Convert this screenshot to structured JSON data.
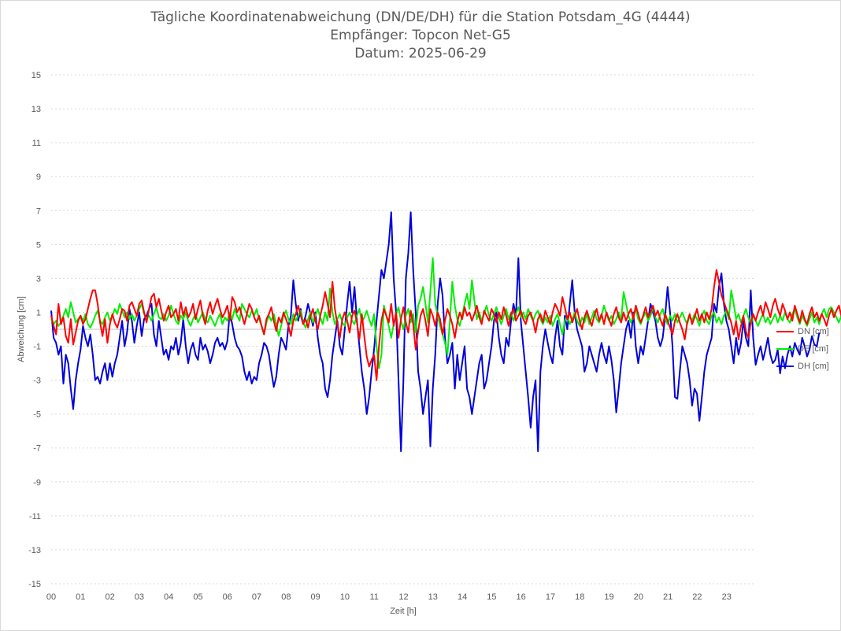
{
  "chart_data": {
    "type": "line",
    "title": "Tägliche Koordinatenabweichung (DN/DE/DH) für die Station Potsdam_4G (4444)",
    "subtitle": "Empfänger: Topcon Net-G5",
    "subtitle2": "Datum: 2025-06-29",
    "xlabel": "Zeit [h]",
    "ylabel": "Abweichung [cm]",
    "xlim": [
      0,
      24
    ],
    "ylim": [
      -15,
      15
    ],
    "x_ticks": [
      "00",
      "01",
      "02",
      "03",
      "04",
      "05",
      "06",
      "07",
      "08",
      "09",
      "10",
      "11",
      "12",
      "13",
      "14",
      "15",
      "16",
      "17",
      "18",
      "19",
      "20",
      "21",
      "22",
      "23"
    ],
    "y_ticks": [
      15,
      13,
      11,
      9,
      7,
      5,
      3,
      1,
      -1,
      -3,
      -5,
      -7,
      -9,
      -11,
      -13,
      -15
    ],
    "grid": "horizontal-dotted",
    "legend_position": "right",
    "x_step_hours": 0.0833,
    "series": [
      {
        "name": "DN [cm]",
        "color": "#ff0000",
        "values": [
          0.8,
          0.2,
          -0.3,
          1.5,
          0.3,
          0.7,
          -0.4,
          -0.8,
          0.6,
          -0.9,
          -0.2,
          0.5,
          0.8,
          0.3,
          0.6,
          1.2,
          1.8,
          2.3,
          2.3,
          1.5,
          0.4,
          -0.4,
          0.6,
          -0.8,
          0.3,
          0.9,
          0.4,
          0.1,
          0.6,
          1.2,
          1.1,
          0.5,
          1.4,
          1.6,
          1.2,
          0.8,
          1.5,
          1.7,
          1.0,
          0.4,
          1.2,
          1.9,
          2.1,
          1.3,
          1.8,
          1.1,
          0.5,
          1.0,
          1.4,
          0.7,
          0.9,
          1.2,
          0.5,
          1.6,
          0.8,
          1.3,
          0.7,
          1.0,
          1.5,
          0.6,
          1.2,
          1.7,
          0.8,
          0.3,
          1.1,
          1.6,
          0.9,
          1.4,
          1.8,
          1.2,
          0.7,
          1.0,
          1.4,
          0.5,
          1.9,
          1.6,
          1.0,
          1.3,
          0.8,
          0.3,
          0.9,
          1.5,
          1.2,
          0.7,
          0.4,
          0.8,
          0.2,
          -0.3,
          0.6,
          0.9,
          1.3,
          0.5,
          -0.1,
          0.7,
          0.4,
          1.0,
          0.6,
          0.2,
          -0.4,
          0.5,
          0.9,
          1.4,
          0.8,
          0.3,
          0.6,
          0.1,
          0.8,
          1.2,
          0.5,
          0.0,
          0.8,
          1.4,
          2.2,
          1.5,
          0.7,
          2.8,
          1.2,
          0.3,
          -0.5,
          0.6,
          1.0,
          0.5,
          -0.2,
          0.8,
          1.1,
          0.4,
          -0.6,
          0.9,
          -0.4,
          -1.6,
          -2.2,
          -1.8,
          -1.5,
          -3.0,
          -1.0,
          0.5,
          1.2,
          0.8,
          0.4,
          1.5,
          0.2,
          1.0,
          -0.5,
          0.6,
          1.3,
          0.4,
          -0.2,
          1.1,
          0.3,
          -1.2,
          -0.1,
          0.8,
          1.2,
          0.5,
          -0.4,
          1.2,
          0.8,
          0.2,
          1.0,
          0.6,
          -0.3,
          0.5,
          1.2,
          0.8,
          0.3,
          -0.5,
          0.4,
          1.0,
          0.6,
          1.3,
          0.8,
          1.0,
          0.5,
          0.9,
          1.4,
          0.7,
          0.3,
          1.1,
          0.8,
          0.5,
          1.2,
          0.9,
          0.4,
          1.0,
          0.6,
          1.3,
          0.8,
          0.2,
          0.9,
          1.2,
          0.5,
          0.8,
          1.1,
          0.6,
          0.3,
          0.8,
          1.0,
          0.5,
          -0.2,
          0.6,
          0.9,
          0.4,
          1.1,
          0.7,
          0.3,
          1.0,
          1.5,
          1.2,
          0.8,
          1.9,
          1.3,
          0.6,
          1.0,
          0.4,
          0.8,
          1.2,
          0.5,
          0.0,
          0.7,
          1.1,
          0.6,
          0.2,
          0.8,
          1.2,
          0.5,
          0.9,
          0.3,
          1.0,
          0.6,
          0.2,
          0.9,
          1.3,
          0.7,
          0.4,
          1.0,
          0.5,
          0.9,
          1.2,
          0.6,
          1.4,
          0.9,
          0.4,
          0.8,
          1.3,
          0.7,
          1.0,
          1.4,
          0.8,
          1.1,
          0.6,
          0.2,
          0.9,
          0.5,
          0.1,
          -0.3,
          0.5,
          0.9,
          0.4,
          0.0,
          -0.6,
          0.4,
          0.9,
          0.3,
          0.7,
          1.2,
          0.5,
          0.9,
          0.4,
          1.0,
          0.6,
          1.2,
          2.5,
          3.5,
          2.8,
          2.0,
          1.6,
          1.2,
          0.8,
          0.4,
          -0.3,
          0.5,
          -0.6,
          0.2,
          0.8,
          -0.1,
          -0.5,
          0.4,
          0.9,
          0.5,
          1.0,
          1.4,
          0.8,
          1.6,
          1.2,
          0.7,
          1.4,
          1.8,
          1.2,
          0.8,
          1.5,
          1.1,
          0.6,
          1.0,
          0.5,
          1.4,
          0.9,
          0.4,
          1.1,
          0.6,
          0.3,
          0.9,
          1.3,
          0.7,
          1.0,
          0.5,
          0.9,
          0.6,
          0.2,
          0.8,
          1.2,
          0.7,
          1.1,
          1.4,
          0.8,
          0.6,
          1.1,
          1.4
        ]
      },
      {
        "name": "DE [cm]",
        "color": "#00ee00",
        "values": [
          0.6,
          0.3,
          0.5,
          0.2,
          0.4,
          0.8,
          1.2,
          0.7,
          1.6,
          1.0,
          0.4,
          0.6,
          0.8,
          0.5,
          0.9,
          0.3,
          0.1,
          0.4,
          0.8,
          1.1,
          0.5,
          0.3,
          0.7,
          1.0,
          0.5,
          0.8,
          1.2,
          0.9,
          1.5,
          1.1,
          0.7,
          1.0,
          0.6,
          0.9,
          0.5,
          0.8,
          1.2,
          1.5,
          0.9,
          0.6,
          0.8,
          0.5,
          0.9,
          1.3,
          0.7,
          0.6,
          0.9,
          0.5,
          0.8,
          1.4,
          0.9,
          0.5,
          0.3,
          0.8,
          0.6,
          1.0,
          0.5,
          0.2,
          0.6,
          0.9,
          0.4,
          0.7,
          1.0,
          0.6,
          0.4,
          0.8,
          0.5,
          0.2,
          0.6,
          0.9,
          0.3,
          0.7,
          0.5,
          1.0,
          0.6,
          1.2,
          0.8,
          0.5,
          1.5,
          1.2,
          0.9,
          0.7,
          1.1,
          0.8,
          1.2,
          0.6,
          0.2,
          -0.3,
          0.4,
          0.8,
          0.5,
          0.9,
          0.3,
          -0.4,
          0.2,
          0.8,
          1.1,
          0.6,
          0.3,
          0.9,
          0.5,
          0.8,
          1.1,
          0.4,
          0.1,
          0.6,
          1.0,
          0.4,
          0.8,
          1.2,
          0.7,
          0.3,
          1.0,
          0.5,
          2.4,
          1.0,
          0.3,
          0.6,
          0.9,
          0.4,
          0.2,
          0.7,
          1.0,
          0.5,
          0.3,
          0.8,
          1.2,
          0.4,
          0.7,
          1.1,
          0.6,
          0.2,
          0.9,
          -1.0,
          -2.3,
          -1.5,
          1.4,
          0.8,
          0.2,
          -0.5,
          0.3,
          0.9,
          1.3,
          0.5,
          0.0,
          0.8,
          1.2,
          0.4,
          0.9,
          -0.2,
          1.4,
          1.8,
          2.5,
          1.5,
          0.4,
          2.2,
          4.2,
          1.5,
          0.8,
          0.2,
          -0.3,
          -0.8,
          -1.5,
          0.5,
          2.8,
          1.4,
          0.6,
          0.2,
          0.8,
          1.5,
          2.1,
          1.2,
          2.9,
          1.7,
          0.6,
          1.0,
          0.5,
          0.9,
          1.4,
          0.8,
          0.5,
          0.9,
          1.3,
          0.7,
          0.3,
          0.8,
          1.2,
          0.6,
          1.0,
          0.5,
          0.9,
          1.3,
          0.7,
          1.0,
          0.6,
          1.2,
          0.8,
          0.5,
          0.9,
          1.1,
          0.6,
          0.3,
          0.7,
          0.4,
          0.8,
          0.2,
          0.6,
          0.9,
          0.3,
          -0.3,
          0.5,
          0.8,
          0.3,
          0.6,
          1.0,
          0.5,
          0.2,
          0.7,
          0.4,
          0.9,
          0.3,
          0.7,
          1.1,
          0.6,
          0.4,
          0.8,
          1.4,
          0.9,
          0.5,
          0.8,
          0.3,
          0.6,
          1.0,
          0.5,
          2.2,
          1.5,
          0.8,
          0.4,
          0.8,
          1.2,
          0.6,
          0.3,
          0.7,
          1.0,
          0.5,
          0.8,
          1.3,
          0.7,
          0.4,
          0.9,
          1.2,
          0.6,
          0.3,
          0.8,
          0.5,
          0.9,
          0.4,
          0.7,
          1.0,
          0.6,
          0.3,
          0.8,
          0.5,
          0.9,
          0.6,
          0.2,
          0.8,
          1.1,
          0.5,
          0.3,
          0.8,
          1.0,
          0.4,
          0.7,
          0.3,
          0.8,
          1.1,
          0.6,
          2.3,
          1.5,
          0.6,
          0.9,
          0.4,
          0.8,
          1.2,
          0.7,
          0.3,
          0.8,
          0.5,
          0.2,
          0.6,
          0.9,
          0.4,
          0.7,
          0.3,
          0.6,
          0.9,
          0.4,
          0.8,
          0.5,
          1.0,
          0.6,
          0.4,
          0.9,
          1.2,
          0.7,
          0.3,
          0.8,
          0.5,
          0.2,
          0.6,
          1.0,
          0.4,
          0.7,
          0.3,
          0.9,
          1.2,
          0.7,
          1.2,
          1.3,
          1.0,
          0.7,
          0.4,
          0.8,
          1.1,
          0.6
        ]
      },
      {
        "name": "DH [cm]",
        "color": "#0000dd",
        "values": [
          1.1,
          -0.5,
          -0.8,
          -1.5,
          -1.0,
          -3.2,
          -1.5,
          -2.0,
          -3.5,
          -4.7,
          -3.0,
          -2.0,
          -1.2,
          0.2,
          -0.5,
          -1.0,
          -0.3,
          -1.5,
          -3.0,
          -2.8,
          -3.2,
          -2.5,
          -2.0,
          -3.0,
          -2.0,
          -2.8,
          -2.0,
          -1.5,
          -0.5,
          0.5,
          -1.0,
          -0.2,
          1.2,
          0.5,
          -0.8,
          0.2,
          1.0,
          -0.4,
          0.6,
          0.8,
          1.2,
          1.5,
          -0.3,
          -1.0,
          0.5,
          -0.5,
          -1.5,
          -1.2,
          -1.8,
          -1.0,
          -1.2,
          -0.5,
          -1.5,
          -0.8,
          0.6,
          -1.0,
          -2.0,
          -1.2,
          -0.8,
          -1.5,
          -1.8,
          -0.5,
          -1.2,
          -0.9,
          -1.3,
          -2.0,
          -1.5,
          -0.8,
          -0.5,
          -1.0,
          -0.8,
          -1.2,
          -0.7,
          1.0,
          0.3,
          -0.5,
          -1.0,
          -1.2,
          -1.6,
          -2.5,
          -3.0,
          -2.5,
          -3.2,
          -2.8,
          -3.0,
          -2.0,
          -1.5,
          -0.8,
          -1.0,
          -1.5,
          -2.5,
          -3.4,
          -2.8,
          -1.5,
          -0.5,
          -0.8,
          -1.2,
          0.2,
          0.8,
          2.9,
          1.5,
          0.5,
          1.2,
          0.3,
          0.8,
          1.5,
          0.9,
          0.2,
          1.0,
          -0.5,
          -1.5,
          -2.0,
          -3.5,
          -4.0,
          -3.0,
          -1.5,
          -0.5,
          0.5,
          -1.0,
          -1.5,
          0.0,
          1.5,
          2.8,
          1.0,
          2.5,
          0.5,
          -1.0,
          -2.5,
          -3.5,
          -5.0,
          -4.0,
          -2.5,
          -1.2,
          0.5,
          2.0,
          3.5,
          3.0,
          4.0,
          5.0,
          6.9,
          3.0,
          1.0,
          -3.0,
          -7.2,
          -3.0,
          3.0,
          4.5,
          6.9,
          3.5,
          1.0,
          -2.5,
          -3.5,
          -5.0,
          -4.0,
          -3.0,
          -6.9,
          -3.5,
          -1.5,
          1.5,
          3.0,
          2.0,
          -0.5,
          -2.0,
          -1.5,
          -0.8,
          -3.5,
          -1.5,
          -3.0,
          -2.0,
          -1.0,
          -3.5,
          -4.0,
          -5.0,
          -4.0,
          -3.0,
          -2.0,
          -1.5,
          -3.5,
          -3.0,
          -2.0,
          -1.0,
          0.5,
          1.0,
          -0.5,
          -1.5,
          -2.0,
          -0.5,
          -1.0,
          0.5,
          1.5,
          0.8,
          4.2,
          0.5,
          -1.0,
          -2.5,
          -4.0,
          -5.8,
          -4.0,
          -3.0,
          -7.2,
          -2.5,
          -1.0,
          0.0,
          -0.8,
          -1.5,
          -2.0,
          -0.5,
          0.5,
          -1.0,
          -1.5,
          0.8,
          0.0,
          1.5,
          2.9,
          1.0,
          0.0,
          -0.5,
          -1.0,
          -2.5,
          -2.0,
          -1.0,
          -1.5,
          -2.0,
          -2.5,
          -1.5,
          -0.8,
          -1.5,
          -2.0,
          -1.0,
          -1.8,
          -3.0,
          -4.9,
          -3.5,
          -2.0,
          -1.0,
          0.0,
          0.5,
          -0.5,
          1.0,
          -1.0,
          -2.0,
          -1.0,
          -1.5,
          -0.5,
          0.5,
          1.5,
          1.0,
          0.5,
          -0.5,
          -1.0,
          -0.5,
          0.8,
          2.5,
          1.0,
          -1.0,
          -4.0,
          -4.1,
          -2.5,
          -1.0,
          -1.5,
          -2.0,
          -3.0,
          -4.5,
          -3.5,
          -3.8,
          -5.4,
          -4.0,
          -2.5,
          -1.5,
          -1.0,
          -0.5,
          1.5,
          1.0,
          2.5,
          3.3,
          1.5,
          0.5,
          0.0,
          -1.0,
          -2.0,
          -0.5,
          -1.5,
          -0.8,
          0.5,
          -0.5,
          -1.0,
          2.3,
          -0.5,
          -2.1,
          -1.5,
          -1.0,
          -1.8,
          -1.2,
          -0.5,
          -1.5,
          -2.0,
          -1.8,
          -1.2,
          -2.6,
          -1.6,
          -2.3,
          -1.5,
          -1.0,
          -1.6,
          -0.8,
          -1.2,
          -1.5,
          -0.5,
          -1.0,
          -1.6,
          -1.2,
          -0.4,
          -0.9,
          -1.0,
          -0.2
        ]
      }
    ]
  }
}
